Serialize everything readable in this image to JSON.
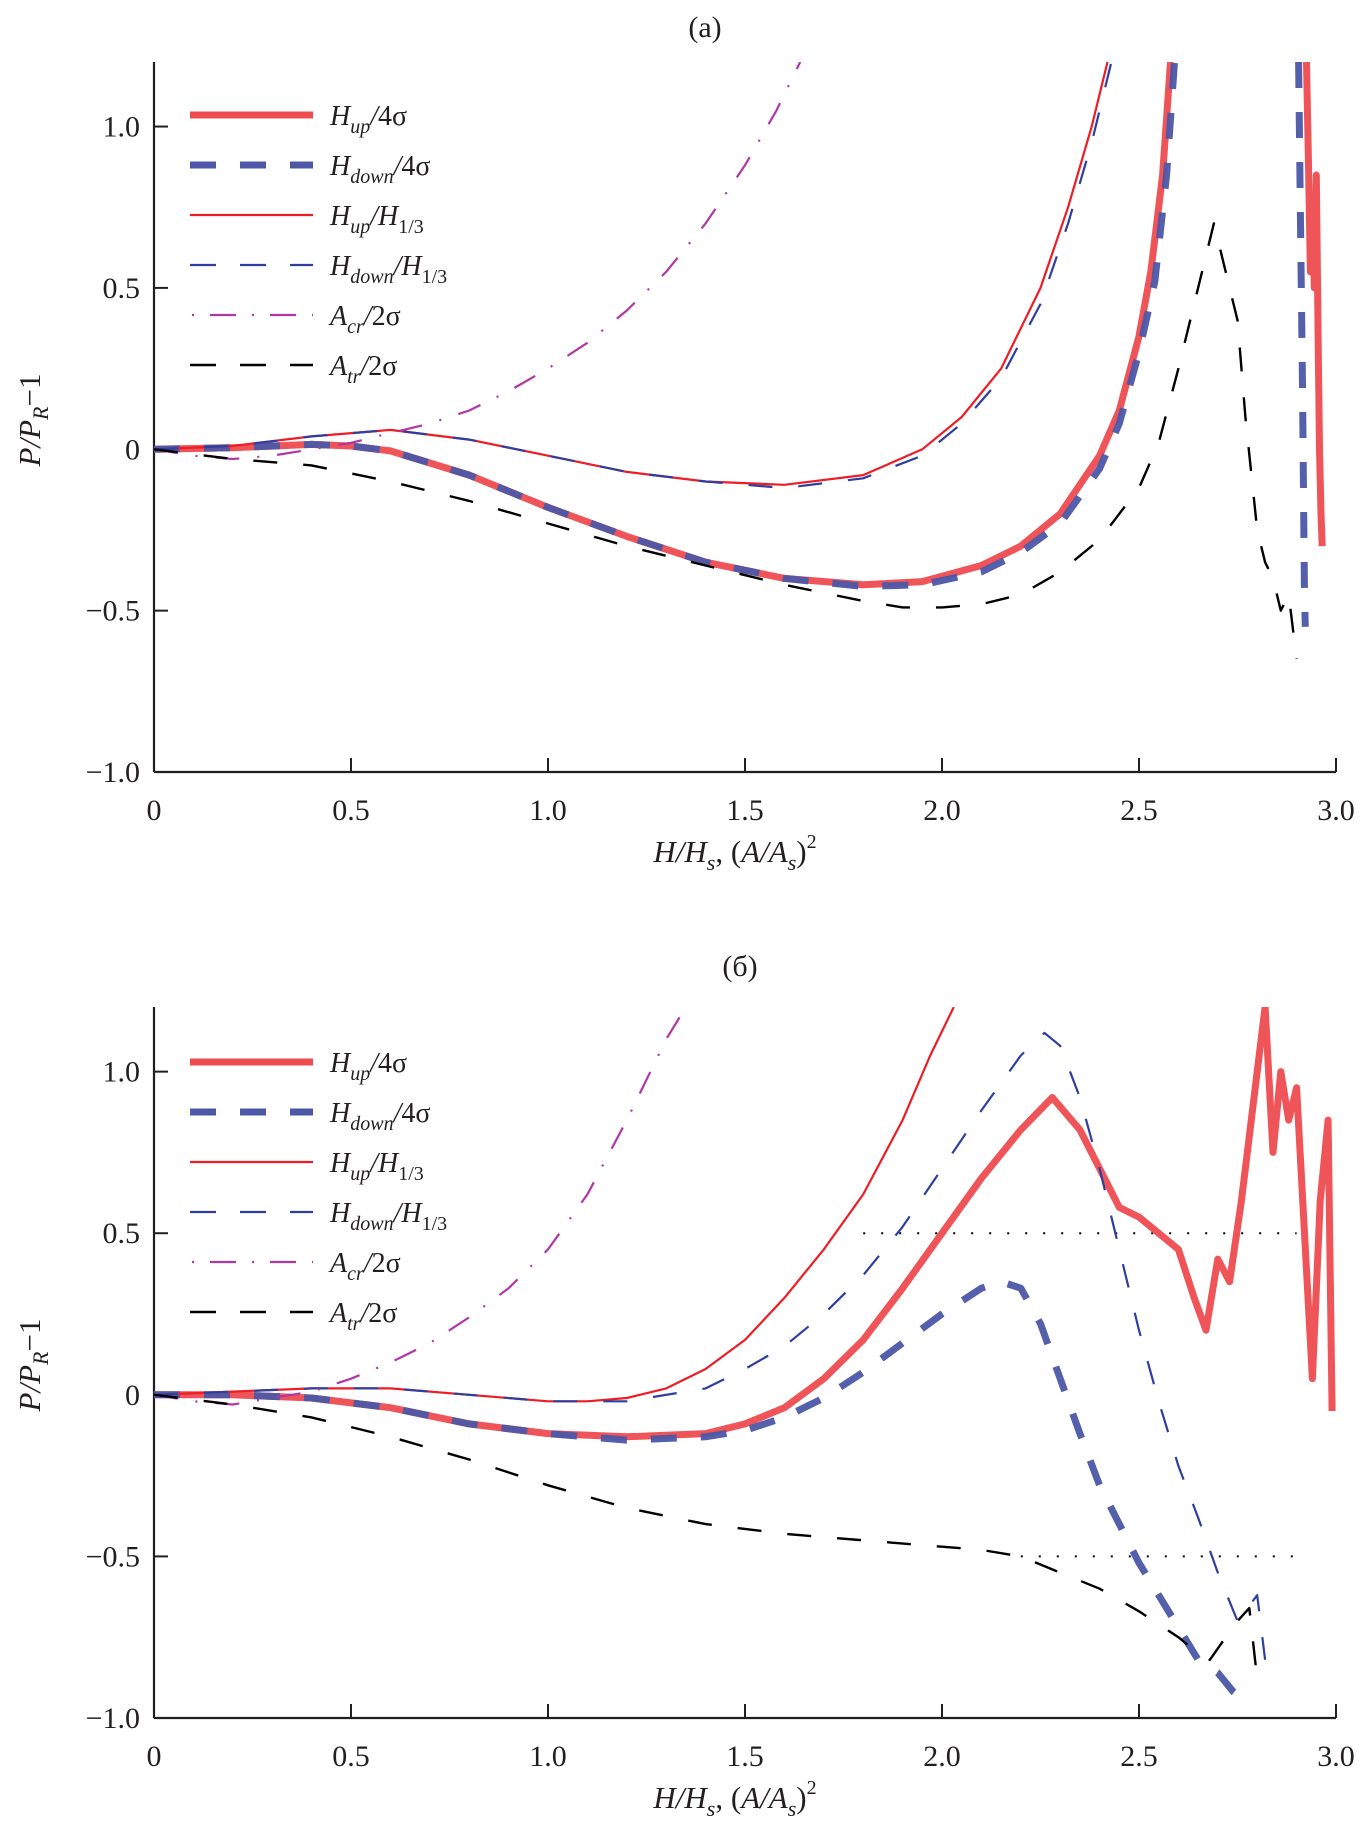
{
  "chart_data": [
    {
      "type": "line",
      "panel": "top",
      "title": "(а)",
      "xlabel": "H/H_s, (A/A_s)^2",
      "ylabel": "P/P_R−1",
      "xlim": [
        0,
        3.0
      ],
      "ylim": [
        -1.0,
        1.2
      ],
      "xticks": [
        0,
        0.5,
        1.0,
        1.5,
        2.0,
        2.5,
        3.0
      ],
      "xtick_labels": [
        "0",
        "0.5",
        "1.0",
        "1.5",
        "2.0",
        "2.5",
        "3.0"
      ],
      "yticks": [
        -1.0,
        -0.5,
        0,
        0.5,
        1.0
      ],
      "ytick_labels": [
        "−1.0",
        "−0.5",
        "0",
        "0.5",
        "1.0"
      ],
      "grid": false,
      "legend_position": "top-left",
      "series": [
        {
          "name": "H_up/4σ",
          "label_main": "H",
          "label_sub": "up",
          "label_tail": "/4σ",
          "color": "#ee4b50",
          "style": "thick-solid",
          "x": [
            0,
            0.2,
            0.4,
            0.5,
            0.6,
            0.8,
            1.0,
            1.2,
            1.4,
            1.6,
            1.8,
            1.95,
            2.1,
            2.2,
            2.3,
            2.4,
            2.45,
            2.5,
            2.53,
            2.56,
            2.58
          ],
          "y": [
            0,
            0.005,
            0.015,
            0.01,
            -0.005,
            -0.08,
            -0.18,
            -0.27,
            -0.35,
            -0.4,
            -0.42,
            -0.41,
            -0.36,
            -0.3,
            -0.2,
            -0.02,
            0.12,
            0.35,
            0.55,
            0.85,
            1.2
          ]
        },
        {
          "name": "H_up/4σ (x≈2.9)",
          "legend": false,
          "color": "#ee4b50",
          "style": "thick-solid",
          "x": [
            2.925,
            2.93,
            2.935,
            2.94,
            2.945,
            2.95,
            2.955,
            2.958,
            2.962,
            2.965
          ],
          "y": [
            1.2,
            0.9,
            0.55,
            0.75,
            0.5,
            0.85,
            0.3,
            0.0,
            -0.2,
            -0.3
          ]
        },
        {
          "name": "H_down/4σ",
          "label_main": "H",
          "label_sub": "down",
          "label_tail": "/4σ",
          "color": "#4c57a8",
          "style": "thick-dashed",
          "x": [
            0,
            0.2,
            0.4,
            0.5,
            0.6,
            0.8,
            1.0,
            1.2,
            1.4,
            1.6,
            1.8,
            1.95,
            2.1,
            2.2,
            2.3,
            2.4,
            2.45,
            2.5,
            2.54,
            2.57,
            2.59
          ],
          "y": [
            0,
            0.005,
            0.015,
            0.01,
            -0.005,
            -0.08,
            -0.18,
            -0.27,
            -0.35,
            -0.4,
            -0.425,
            -0.42,
            -0.38,
            -0.32,
            -0.23,
            -0.06,
            0.08,
            0.3,
            0.52,
            0.85,
            1.2
          ]
        },
        {
          "name": "H_down/4σ (x≈2.9)",
          "legend": false,
          "color": "#4c57a8",
          "style": "thick-dashed",
          "x": [
            2.905,
            2.91,
            2.915,
            2.918,
            2.92,
            2.922
          ],
          "y": [
            1.2,
            0.7,
            0.2,
            -0.2,
            -0.45,
            -0.55
          ]
        },
        {
          "name": "H_up/H_1/3",
          "label_main": "H",
          "label_sub": "up",
          "label_tail": "/H",
          "label_sub2": "1/3",
          "color": "#ee1c25",
          "style": "thin-solid",
          "x": [
            0,
            0.2,
            0.4,
            0.6,
            0.8,
            1.0,
            1.2,
            1.4,
            1.6,
            1.8,
            1.95,
            2.05,
            2.15,
            2.25,
            2.32,
            2.38,
            2.42
          ],
          "y": [
            0,
            0.01,
            0.04,
            0.06,
            0.03,
            -0.02,
            -0.07,
            -0.1,
            -0.11,
            -0.08,
            0.0,
            0.1,
            0.25,
            0.5,
            0.75,
            1.0,
            1.2
          ]
        },
        {
          "name": "H_down/H_1/3",
          "label_main": "H",
          "label_sub": "down",
          "label_tail": "/H",
          "label_sub2": "1/3",
          "color": "#2e3fa0",
          "style": "thin-dashed",
          "x": [
            0,
            0.2,
            0.4,
            0.6,
            0.8,
            1.0,
            1.2,
            1.4,
            1.6,
            1.8,
            1.95,
            2.05,
            2.15,
            2.25,
            2.32,
            2.38,
            2.43
          ],
          "y": [
            0,
            0.01,
            0.04,
            0.06,
            0.03,
            -0.02,
            -0.07,
            -0.1,
            -0.12,
            -0.09,
            -0.02,
            0.08,
            0.22,
            0.45,
            0.7,
            0.95,
            1.2
          ]
        },
        {
          "name": "A_cr/2σ",
          "label_main": "A",
          "label_sub": "cr",
          "label_tail": "/2σ",
          "color": "#b136a6",
          "style": "dash-dot",
          "x": [
            0,
            0.1,
            0.2,
            0.3,
            0.4,
            0.5,
            0.6,
            0.7,
            0.8,
            0.9,
            1.0,
            1.1,
            1.2,
            1.3,
            1.4,
            1.5,
            1.58,
            1.64
          ],
          "y": [
            0,
            -0.02,
            -0.03,
            -0.02,
            0.0,
            0.02,
            0.05,
            0.08,
            0.12,
            0.18,
            0.25,
            0.33,
            0.43,
            0.55,
            0.7,
            0.88,
            1.05,
            1.2
          ]
        },
        {
          "name": "A_tr/2σ",
          "label_main": "A",
          "label_sub": "tr",
          "label_tail": "/2σ",
          "color": "#000000",
          "style": "black-dashed",
          "x": [
            0,
            0.2,
            0.4,
            0.6,
            0.8,
            1.0,
            1.2,
            1.4,
            1.6,
            1.8,
            1.9,
            2.0,
            2.1,
            2.2,
            2.3,
            2.4,
            2.5,
            2.55,
            2.6,
            2.65,
            2.69,
            2.72,
            2.75,
            2.77,
            2.8,
            2.82,
            2.84,
            2.86,
            2.88,
            2.9
          ],
          "y": [
            0,
            -0.03,
            -0.05,
            -0.1,
            -0.16,
            -0.23,
            -0.3,
            -0.36,
            -0.42,
            -0.47,
            -0.49,
            -0.49,
            -0.48,
            -0.45,
            -0.38,
            -0.28,
            -0.12,
            0.02,
            0.25,
            0.5,
            0.7,
            0.55,
            0.4,
            0.1,
            -0.25,
            -0.35,
            -0.4,
            -0.5,
            -0.45,
            -0.65
          ]
        }
      ]
    },
    {
      "type": "line",
      "panel": "bottom",
      "title": "(б)",
      "xlabel": "H/H_s, (A/A_s)^2",
      "ylabel": "P/P_R−1",
      "xlim": [
        0,
        3.0
      ],
      "ylim": [
        -1.0,
        1.2
      ],
      "xticks": [
        0,
        0.5,
        1.0,
        1.5,
        2.0,
        2.5,
        3.0
      ],
      "xtick_labels": [
        "0",
        "0.5",
        "1.0",
        "1.5",
        "2.0",
        "2.5",
        "3.0"
      ],
      "yticks": [
        -1.0,
        -0.5,
        0,
        0.5,
        1.0
      ],
      "ytick_labels": [
        "−1.0",
        "−0.5",
        "0",
        "0.5",
        "1.0"
      ],
      "grid": false,
      "legend_position": "top-left",
      "reference_lines": [
        {
          "y": 0.5,
          "x": [
            1.8,
            2.9
          ],
          "style": "dotted",
          "color": "#000000"
        },
        {
          "y": -0.5,
          "x": [
            2.2,
            2.9
          ],
          "style": "dotted",
          "color": "#000000"
        }
      ],
      "series": [
        {
          "name": "H_up/4σ",
          "label_main": "H",
          "label_sub": "up",
          "label_tail": "/4σ",
          "color": "#ee4b50",
          "style": "thick-solid",
          "x": [
            0,
            0.2,
            0.4,
            0.6,
            0.8,
            1.0,
            1.2,
            1.4,
            1.5,
            1.6,
            1.7,
            1.8,
            1.9,
            2.0,
            2.1,
            2.2,
            2.28,
            2.35,
            2.4,
            2.45,
            2.5,
            2.55,
            2.6,
            2.64,
            2.67,
            2.7,
            2.73,
            2.76,
            2.8,
            2.82,
            2.84,
            2.86,
            2.88,
            2.9,
            2.92,
            2.94,
            2.96,
            2.98,
            2.99
          ],
          "y": [
            0,
            0.0,
            -0.01,
            -0.04,
            -0.09,
            -0.12,
            -0.13,
            -0.12,
            -0.09,
            -0.04,
            0.05,
            0.17,
            0.33,
            0.5,
            0.67,
            0.82,
            0.92,
            0.82,
            0.7,
            0.58,
            0.55,
            0.5,
            0.45,
            0.3,
            0.2,
            0.42,
            0.35,
            0.6,
            1.0,
            1.2,
            0.75,
            1.0,
            0.85,
            0.95,
            0.5,
            0.05,
            0.6,
            0.85,
            -0.05
          ]
        },
        {
          "name": "H_down/4σ",
          "label_main": "H",
          "label_sub": "down",
          "label_tail": "/4σ",
          "color": "#4c57a8",
          "style": "thick-dashed",
          "x": [
            0,
            0.2,
            0.4,
            0.6,
            0.8,
            1.0,
            1.2,
            1.4,
            1.5,
            1.6,
            1.7,
            1.8,
            1.9,
            2.0,
            2.1,
            2.15,
            2.2,
            2.25,
            2.3,
            2.35,
            2.4,
            2.45,
            2.5,
            2.55,
            2.6,
            2.65,
            2.7,
            2.74,
            2.77
          ],
          "y": [
            0,
            0.0,
            -0.01,
            -0.04,
            -0.09,
            -0.12,
            -0.14,
            -0.13,
            -0.11,
            -0.07,
            -0.01,
            0.07,
            0.16,
            0.25,
            0.33,
            0.35,
            0.33,
            0.22,
            0.05,
            -0.12,
            -0.28,
            -0.4,
            -0.52,
            -0.62,
            -0.72,
            -0.82,
            -0.86,
            -0.92,
            -0.95
          ]
        },
        {
          "name": "H_up/H_1/3",
          "label_main": "H",
          "label_sub": "up",
          "label_tail": "/H",
          "label_sub2": "1/3",
          "color": "#ee1c25",
          "style": "thin-solid",
          "x": [
            0,
            0.2,
            0.4,
            0.6,
            0.8,
            1.0,
            1.1,
            1.2,
            1.3,
            1.4,
            1.5,
            1.6,
            1.7,
            1.8,
            1.9,
            1.97,
            2.03
          ],
          "y": [
            0,
            0.01,
            0.02,
            0.02,
            0.0,
            -0.02,
            -0.02,
            -0.01,
            0.02,
            0.08,
            0.17,
            0.3,
            0.45,
            0.62,
            0.85,
            1.05,
            1.2
          ]
        },
        {
          "name": "H_down/H_1/3",
          "label_main": "H",
          "label_sub": "down",
          "label_tail": "/H",
          "label_sub2": "1/3",
          "color": "#2e3fa0",
          "style": "thin-dashed",
          "x": [
            0,
            0.2,
            0.4,
            0.6,
            0.8,
            1.0,
            1.2,
            1.4,
            1.5,
            1.6,
            1.7,
            1.8,
            1.9,
            2.0,
            2.1,
            2.2,
            2.26,
            2.3,
            2.35,
            2.4,
            2.45,
            2.5,
            2.55,
            2.6,
            2.65,
            2.7,
            2.75,
            2.8,
            2.82
          ],
          "y": [
            0,
            0.01,
            0.02,
            0.02,
            0.0,
            -0.02,
            -0.02,
            0.02,
            0.08,
            0.15,
            0.25,
            0.37,
            0.52,
            0.7,
            0.88,
            1.05,
            1.12,
            1.08,
            0.92,
            0.7,
            0.45,
            0.2,
            -0.02,
            -0.22,
            -0.38,
            -0.55,
            -0.7,
            -0.62,
            -0.82
          ]
        },
        {
          "name": "A_cr/2σ",
          "label_main": "A",
          "label_sub": "cr",
          "label_tail": "/2σ",
          "color": "#b136a6",
          "style": "dash-dot",
          "x": [
            0,
            0.1,
            0.2,
            0.3,
            0.4,
            0.5,
            0.6,
            0.7,
            0.8,
            0.9,
            1.0,
            1.1,
            1.2,
            1.3,
            1.35
          ],
          "y": [
            0,
            -0.02,
            -0.03,
            -0.01,
            0.01,
            0.05,
            0.1,
            0.16,
            0.24,
            0.33,
            0.45,
            0.62,
            0.85,
            1.1,
            1.2
          ]
        },
        {
          "name": "A_tr/2σ",
          "label_main": "A",
          "label_sub": "tr",
          "label_tail": "/2σ",
          "color": "#000000",
          "style": "black-dashed",
          "x": [
            0,
            0.2,
            0.4,
            0.6,
            0.8,
            1.0,
            1.2,
            1.4,
            1.6,
            1.8,
            2.0,
            2.1,
            2.2,
            2.3,
            2.4,
            2.5,
            2.6,
            2.65,
            2.68,
            2.72,
            2.75,
            2.78,
            2.8
          ],
          "y": [
            0,
            -0.03,
            -0.07,
            -0.13,
            -0.2,
            -0.28,
            -0.35,
            -0.4,
            -0.43,
            -0.45,
            -0.47,
            -0.48,
            -0.5,
            -0.55,
            -0.6,
            -0.67,
            -0.75,
            -0.8,
            -0.82,
            -0.75,
            -0.7,
            -0.66,
            -0.88
          ]
        }
      ]
    }
  ]
}
